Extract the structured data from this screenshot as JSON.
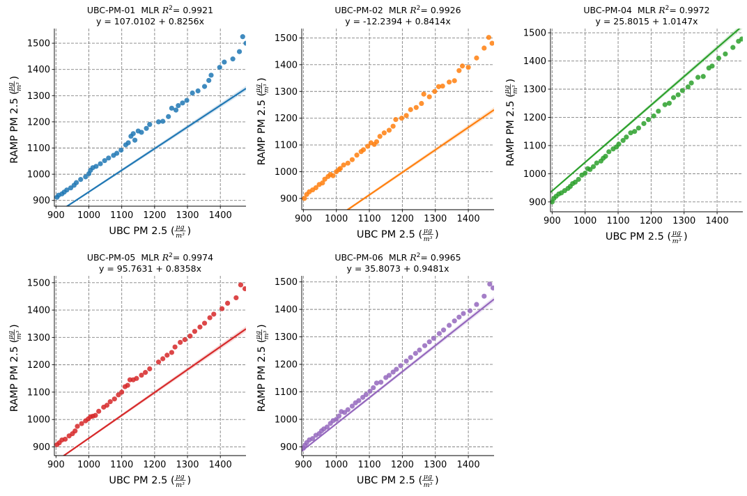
{
  "chart_data": [
    {
      "type": "scatter",
      "device": "UBC-PM-01",
      "r2": "0.9921",
      "equation": "y = 107.0102 + 0.8256x",
      "intercept": 107.0102,
      "slope": 0.8256,
      "color": "#1f77b4",
      "xlabel": "UBC PM 2.5",
      "ylabel": "RAMP PM 2.5",
      "unit_num": "μg",
      "unit_den": "m³",
      "xlim": [
        895,
        1478
      ],
      "ylim": [
        878,
        1556
      ],
      "xticks": [
        900,
        1000,
        1100,
        1200,
        1300,
        1400
      ],
      "yticks": [
        900,
        1000,
        1100,
        1200,
        1300,
        1400,
        1500
      ],
      "grid": true,
      "points": [
        [
          903,
          912
        ],
        [
          908,
          920
        ],
        [
          918,
          925
        ],
        [
          925,
          932
        ],
        [
          933,
          940
        ],
        [
          945,
          948
        ],
        [
          955,
          958
        ],
        [
          962,
          968
        ],
        [
          975,
          980
        ],
        [
          990,
          990
        ],
        [
          1000,
          1002
        ],
        [
          1005,
          1015
        ],
        [
          1012,
          1025
        ],
        [
          1022,
          1030
        ],
        [
          1035,
          1040
        ],
        [
          1048,
          1052
        ],
        [
          1060,
          1062
        ],
        [
          1075,
          1072
        ],
        [
          1085,
          1080
        ],
        [
          1098,
          1092
        ],
        [
          1112,
          1112
        ],
        [
          1120,
          1120
        ],
        [
          1128,
          1145
        ],
        [
          1135,
          1155
        ],
        [
          1140,
          1130
        ],
        [
          1150,
          1165
        ],
        [
          1160,
          1160
        ],
        [
          1175,
          1175
        ],
        [
          1185,
          1190
        ],
        [
          1212,
          1200
        ],
        [
          1225,
          1202
        ],
        [
          1242,
          1220
        ],
        [
          1252,
          1252
        ],
        [
          1265,
          1245
        ],
        [
          1272,
          1262
        ],
        [
          1285,
          1272
        ],
        [
          1298,
          1282
        ],
        [
          1315,
          1310
        ],
        [
          1332,
          1318
        ],
        [
          1352,
          1335
        ],
        [
          1365,
          1358
        ],
        [
          1372,
          1378
        ],
        [
          1398,
          1408
        ],
        [
          1412,
          1428
        ],
        [
          1438,
          1440
        ],
        [
          1458,
          1468
        ],
        [
          1468,
          1525
        ],
        [
          1478,
          1500
        ]
      ]
    },
    {
      "type": "scatter",
      "device": "UBC-PM-02",
      "r2": "0.9926",
      "equation": "y = -12.2394 + 0.8414x",
      "intercept": -12.2394,
      "slope": 0.8414,
      "color": "#ff7f0e",
      "xlabel": "UBC PM 2.5",
      "ylabel": "RAMP PM 2.5",
      "unit_num": "μg",
      "unit_den": "m³",
      "xlim": [
        895,
        1478
      ],
      "ylim": [
        858,
        1535
      ],
      "xticks": [
        900,
        1000,
        1100,
        1200,
        1300,
        1400
      ],
      "yticks": [
        900,
        1000,
        1100,
        1200,
        1300,
        1400,
        1500
      ],
      "grid": true,
      "points": [
        [
          903,
          900
        ],
        [
          910,
          915
        ],
        [
          918,
          925
        ],
        [
          928,
          932
        ],
        [
          938,
          940
        ],
        [
          948,
          952
        ],
        [
          958,
          958
        ],
        [
          965,
          972
        ],
        [
          975,
          982
        ],
        [
          982,
          990
        ],
        [
          990,
          985
        ],
        [
          1000,
          1000
        ],
        [
          1008,
          1008
        ],
        [
          1012,
          1012
        ],
        [
          1022,
          1025
        ],
        [
          1035,
          1032
        ],
        [
          1048,
          1045
        ],
        [
          1062,
          1062
        ],
        [
          1075,
          1075
        ],
        [
          1082,
          1082
        ],
        [
          1095,
          1095
        ],
        [
          1105,
          1108
        ],
        [
          1115,
          1102
        ],
        [
          1122,
          1112
        ],
        [
          1132,
          1132
        ],
        [
          1145,
          1145
        ],
        [
          1160,
          1155
        ],
        [
          1172,
          1170
        ],
        [
          1180,
          1195
        ],
        [
          1198,
          1200
        ],
        [
          1212,
          1210
        ],
        [
          1225,
          1232
        ],
        [
          1242,
          1240
        ],
        [
          1258,
          1255
        ],
        [
          1265,
          1290
        ],
        [
          1282,
          1280
        ],
        [
          1298,
          1300
        ],
        [
          1310,
          1318
        ],
        [
          1322,
          1320
        ],
        [
          1342,
          1335
        ],
        [
          1358,
          1340
        ],
        [
          1372,
          1378
        ],
        [
          1382,
          1395
        ],
        [
          1400,
          1390
        ],
        [
          1425,
          1425
        ],
        [
          1448,
          1462
        ],
        [
          1462,
          1502
        ],
        [
          1472,
          1480
        ]
      ]
    },
    {
      "type": "scatter",
      "device": "UBC-PM-04",
      "r2": "0.9972",
      "equation": "y = 25.8015 + 1.0147x",
      "intercept": 25.8015,
      "slope": 1.0147,
      "color": "#2ca02c",
      "xlabel": "UBC PM 2.5",
      "ylabel": "RAMP PM 2.5",
      "unit_num": "μg",
      "unit_den": "m³",
      "xlim": [
        895,
        1478
      ],
      "ylim": [
        865,
        1515
      ],
      "xticks": [
        900,
        1000,
        1100,
        1200,
        1300,
        1400
      ],
      "yticks": [
        900,
        1000,
        1100,
        1200,
        1300,
        1400,
        1500
      ],
      "grid": true,
      "points": [
        [
          900,
          900
        ],
        [
          905,
          912
        ],
        [
          912,
          920
        ],
        [
          920,
          928
        ],
        [
          928,
          932
        ],
        [
          938,
          940
        ],
        [
          948,
          948
        ],
        [
          955,
          955
        ],
        [
          962,
          965
        ],
        [
          970,
          970
        ],
        [
          980,
          980
        ],
        [
          990,
          995
        ],
        [
          1000,
          1002
        ],
        [
          1008,
          1018
        ],
        [
          1015,
          1015
        ],
        [
          1025,
          1025
        ],
        [
          1035,
          1038
        ],
        [
          1048,
          1045
        ],
        [
          1055,
          1055
        ],
        [
          1062,
          1062
        ],
        [
          1072,
          1078
        ],
        [
          1085,
          1088
        ],
        [
          1095,
          1095
        ],
        [
          1102,
          1105
        ],
        [
          1115,
          1118
        ],
        [
          1125,
          1130
        ],
        [
          1138,
          1145
        ],
        [
          1150,
          1150
        ],
        [
          1162,
          1162
        ],
        [
          1178,
          1178
        ],
        [
          1192,
          1192
        ],
        [
          1208,
          1205
        ],
        [
          1222,
          1222
        ],
        [
          1242,
          1245
        ],
        [
          1255,
          1250
        ],
        [
          1268,
          1270
        ],
        [
          1282,
          1280
        ],
        [
          1295,
          1295
        ],
        [
          1312,
          1308
        ],
        [
          1322,
          1322
        ],
        [
          1342,
          1342
        ],
        [
          1358,
          1345
        ],
        [
          1375,
          1375
        ],
        [
          1385,
          1382
        ],
        [
          1405,
          1410
        ],
        [
          1425,
          1425
        ],
        [
          1448,
          1448
        ],
        [
          1465,
          1470
        ],
        [
          1475,
          1478
        ]
      ]
    },
    {
      "type": "scatter",
      "device": "UBC-PM-05",
      "r2": "0.9974",
      "equation": "y = 95.7631 + 0.8358x",
      "intercept": 95.7631,
      "slope": 0.8358,
      "color": "#d62728",
      "xlabel": "UBC PM 2.5",
      "ylabel": "RAMP PM 2.5",
      "unit_num": "μg",
      "unit_den": "m³",
      "xlim": [
        895,
        1478
      ],
      "ylim": [
        868,
        1525
      ],
      "xticks": [
        900,
        1000,
        1100,
        1200,
        1300,
        1400
      ],
      "yticks": [
        900,
        1000,
        1100,
        1200,
        1300,
        1400,
        1500
      ],
      "grid": true,
      "points": [
        [
          903,
          908
        ],
        [
          910,
          915
        ],
        [
          918,
          925
        ],
        [
          928,
          928
        ],
        [
          940,
          940
        ],
        [
          950,
          948
        ],
        [
          958,
          958
        ],
        [
          965,
          975
        ],
        [
          978,
          985
        ],
        [
          990,
          995
        ],
        [
          998,
          1002
        ],
        [
          1005,
          1010
        ],
        [
          1012,
          1012
        ],
        [
          1020,
          1015
        ],
        [
          1030,
          1030
        ],
        [
          1045,
          1045
        ],
        [
          1055,
          1052
        ],
        [
          1065,
          1065
        ],
        [
          1078,
          1075
        ],
        [
          1090,
          1090
        ],
        [
          1100,
          1100
        ],
        [
          1110,
          1120
        ],
        [
          1118,
          1125
        ],
        [
          1125,
          1145
        ],
        [
          1135,
          1145
        ],
        [
          1145,
          1150
        ],
        [
          1160,
          1162
        ],
        [
          1172,
          1172
        ],
        [
          1185,
          1185
        ],
        [
          1212,
          1210
        ],
        [
          1225,
          1222
        ],
        [
          1238,
          1235
        ],
        [
          1252,
          1245
        ],
        [
          1262,
          1265
        ],
        [
          1278,
          1282
        ],
        [
          1292,
          1292
        ],
        [
          1308,
          1305
        ],
        [
          1322,
          1322
        ],
        [
          1338,
          1338
        ],
        [
          1352,
          1352
        ],
        [
          1368,
          1372
        ],
        [
          1380,
          1385
        ],
        [
          1405,
          1405
        ],
        [
          1422,
          1425
        ],
        [
          1448,
          1445
        ],
        [
          1462,
          1492
        ],
        [
          1475,
          1478
        ]
      ]
    },
    {
      "type": "scatter",
      "device": "UBC-PM-06",
      "r2": "0.9965",
      "equation": "y = 35.8073 + 0.9481x",
      "intercept": 35.8073,
      "slope": 0.9481,
      "color": "#9467bd",
      "xlabel": "UBC PM 2.5",
      "ylabel": "RAMP PM 2.5",
      "unit_num": "μg",
      "unit_den": "m³",
      "xlim": [
        895,
        1478
      ],
      "ylim": [
        868,
        1522
      ],
      "xticks": [
        900,
        1000,
        1100,
        1200,
        1300,
        1400
      ],
      "yticks": [
        900,
        1000,
        1100,
        1200,
        1300,
        1400,
        1500
      ],
      "grid": true,
      "points": [
        [
          900,
          895
        ],
        [
          905,
          905
        ],
        [
          910,
          915
        ],
        [
          918,
          925
        ],
        [
          928,
          930
        ],
        [
          938,
          942
        ],
        [
          948,
          948
        ],
        [
          955,
          958
        ],
        [
          962,
          965
        ],
        [
          972,
          972
        ],
        [
          982,
          985
        ],
        [
          990,
          995
        ],
        [
          1000,
          1000
        ],
        [
          1008,
          1012
        ],
        [
          1015,
          1028
        ],
        [
          1025,
          1025
        ],
        [
          1035,
          1035
        ],
        [
          1048,
          1048
        ],
        [
          1058,
          1060
        ],
        [
          1068,
          1068
        ],
        [
          1080,
          1080
        ],
        [
          1090,
          1090
        ],
        [
          1102,
          1102
        ],
        [
          1112,
          1115
        ],
        [
          1122,
          1132
        ],
        [
          1135,
          1135
        ],
        [
          1150,
          1152
        ],
        [
          1160,
          1160
        ],
        [
          1172,
          1172
        ],
        [
          1182,
          1182
        ],
        [
          1195,
          1195
        ],
        [
          1212,
          1212
        ],
        [
          1225,
          1225
        ],
        [
          1240,
          1240
        ],
        [
          1252,
          1252
        ],
        [
          1268,
          1268
        ],
        [
          1282,
          1282
        ],
        [
          1295,
          1295
        ],
        [
          1312,
          1312
        ],
        [
          1325,
          1325
        ],
        [
          1342,
          1342
        ],
        [
          1358,
          1358
        ],
        [
          1372,
          1372
        ],
        [
          1385,
          1385
        ],
        [
          1405,
          1395
        ],
        [
          1425,
          1418
        ],
        [
          1448,
          1448
        ],
        [
          1465,
          1492
        ],
        [
          1475,
          1478
        ]
      ]
    }
  ]
}
